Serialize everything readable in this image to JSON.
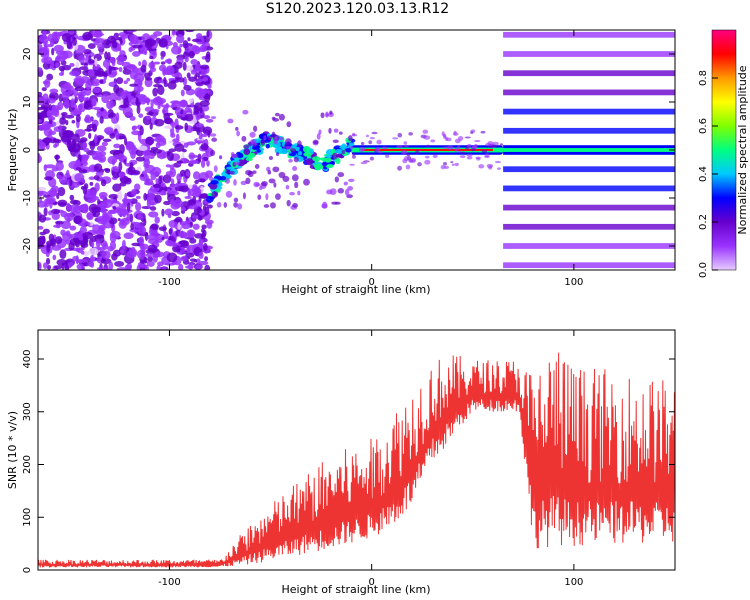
{
  "title": "S120.2023.120.03.13.R12",
  "chart_data": [
    {
      "type": "heatmap",
      "xlabel": "Height of straight line (km)",
      "ylabel": "Frequency (Hz)",
      "xlim": [
        -165,
        150
      ],
      "ylim": [
        -25,
        25
      ],
      "xticks": [
        -100,
        0,
        100
      ],
      "yticks": [
        -20,
        -10,
        0,
        10,
        20
      ],
      "colorbar": {
        "label": "Normalized spectral amplitude",
        "range": [
          0,
          1
        ],
        "ticks": [
          0.0,
          0.2,
          0.4,
          0.6,
          0.8
        ],
        "colormap": [
          "#e6ccff",
          "#9933ff",
          "#6600cc",
          "#0000ff",
          "#00c8ff",
          "#00ff80",
          "#80ff00",
          "#ffff00",
          "#ff9900",
          "#ff0000",
          "#ff0080"
        ]
      },
      "regions": [
        {
          "x": [
            -165,
            -80
          ],
          "pattern": "scattered noise",
          "amplitude": 0.15
        },
        {
          "x": [
            -80,
            -10
          ],
          "pattern": "ridge",
          "freq_hz": [
            -9,
            -2,
            2,
            0,
            -3,
            1
          ],
          "amplitude": 0.35
        },
        {
          "x": [
            -10,
            65
          ],
          "pattern": "strong line at 0 Hz",
          "amplitude": 0.9
        },
        {
          "x": [
            65,
            150
          ],
          "pattern": "harmonic bands",
          "band_spacing_hz": 4,
          "amplitude": 0.35
        }
      ]
    },
    {
      "type": "line",
      "xlabel": "Height of straight line (km)",
      "ylabel": "SNR (10 * v/v)",
      "xlim": [
        -165,
        150
      ],
      "ylim": [
        0,
        455
      ],
      "xticks": [
        -100,
        0,
        100
      ],
      "yticks": [
        0,
        100,
        200,
        300,
        400
      ],
      "color": "#ee3333",
      "envelope": {
        "x": [
          -165,
          -75,
          -60,
          -40,
          -20,
          0,
          10,
          20,
          30,
          40,
          50,
          60,
          73,
          80,
          90,
          100,
          120,
          150
        ],
        "lower": [
          5,
          5,
          10,
          25,
          40,
          60,
          80,
          120,
          200,
          250,
          300,
          300,
          300,
          40,
          45,
          45,
          48,
          50
        ],
        "upper": [
          20,
          20,
          90,
          160,
          220,
          250,
          300,
          350,
          400,
          410,
          400,
          400,
          400,
          380,
          440,
          390,
          380,
          360
        ]
      }
    }
  ]
}
